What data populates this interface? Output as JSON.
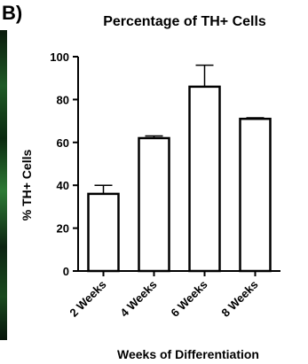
{
  "panel_label": "B)",
  "chart_data": {
    "type": "bar",
    "title": "Percentage of TH+ Cells",
    "xlabel": "Weeks of Differentiation",
    "ylabel": "% TH+ Cells",
    "categories": [
      "2 Weeks",
      "4 Weeks",
      "6 Weeks",
      "8 Weeks"
    ],
    "values": [
      36,
      62,
      86,
      71
    ],
    "error_upper": [
      40,
      63,
      96,
      71.5
    ],
    "ylim": [
      0,
      100
    ],
    "yticks": [
      0,
      20,
      40,
      60,
      80,
      100
    ],
    "grid": false,
    "legend": "none"
  }
}
